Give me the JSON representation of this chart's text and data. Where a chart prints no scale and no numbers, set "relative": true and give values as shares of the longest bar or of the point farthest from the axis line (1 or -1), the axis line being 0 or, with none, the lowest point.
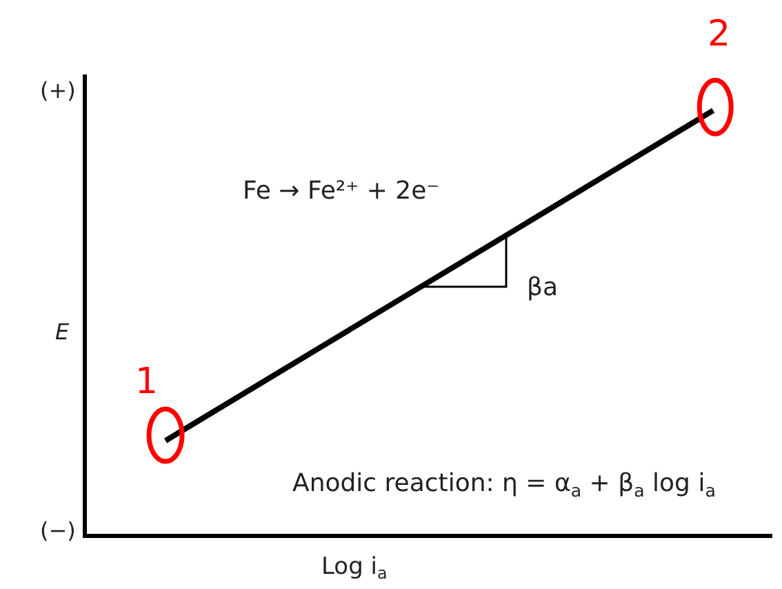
{
  "chart_data": {
    "type": "line",
    "relative": true,
    "xlabel": "Log i$_{a}$",
    "ylabel": "E",
    "categories": [
      null,
      null
    ],
    "series": [
      {
        "color": "#000000",
        "values": [
          0.22,
          1
        ]
      }
    ],
    "annotations": [
      "(+)",
      "(−)",
      "Fe → Fe²⁺ + 2e⁻",
      "βa",
      "Anodic reaction: η = α$_{a}$ + β$_{a}$ log i$_{a}$",
      "1",
      "2"
    ]
  }
}
